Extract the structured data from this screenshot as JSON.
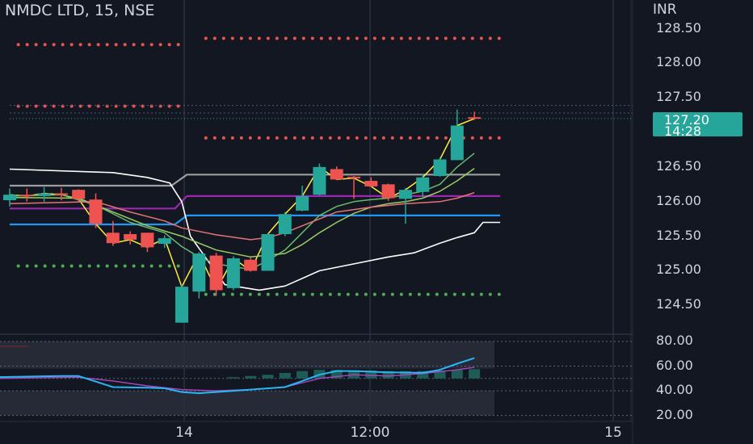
{
  "header": {
    "symbol": "NMDC LTD",
    "interval": "15",
    "exchange": "NSE"
  },
  "price_axis": {
    "currency": "INR",
    "ticks": [
      "128.50",
      "128.00",
      "127.50",
      "126.50",
      "126.00",
      "125.50",
      "125.00",
      "124.50"
    ]
  },
  "oscillator_axis": {
    "ticks": [
      "80.00",
      "60.00",
      "40.00",
      "20.00"
    ]
  },
  "last_price": {
    "price": "127.20",
    "countdown": "14:28"
  },
  "time_axis": {
    "labels": [
      "14",
      "12:00",
      "15"
    ]
  },
  "colors": {
    "background": "#131722",
    "up": "#26a69a",
    "down": "#ef5350",
    "resistance": "#ef5350",
    "support": "#4caf50",
    "magenta_line": "#9c27b0",
    "blue_line": "#2196f3",
    "white_line": "#ffffff",
    "gray_line": "#9e9e9e",
    "rsi_line": "#29b6f6",
    "rsi_signal": "#ab47bc"
  },
  "chart_data": [
    {
      "type": "candlestick",
      "title": "NMDC LTD, 15, NSE",
      "ylabel": "INR",
      "ylim": [
        124.1,
        128.85
      ],
      "last_price": 127.2,
      "candles": [
        {
          "t": "c1",
          "o": 126.02,
          "h": 126.19,
          "l": 125.93,
          "c": 126.1
        },
        {
          "t": "c2",
          "o": 126.1,
          "h": 126.19,
          "l": 126.0,
          "c": 126.08
        },
        {
          "t": "c3",
          "o": 126.08,
          "h": 126.21,
          "l": 126.0,
          "c": 126.12
        },
        {
          "t": "c4",
          "o": 126.12,
          "h": 126.2,
          "l": 126.02,
          "c": 126.1
        },
        {
          "t": "c5",
          "o": 126.17,
          "h": 126.18,
          "l": 126.0,
          "c": 126.04
        },
        {
          "t": "c6",
          "o": 126.03,
          "h": 126.12,
          "l": 125.62,
          "c": 125.68
        },
        {
          "t": "c7",
          "o": 125.55,
          "h": 125.72,
          "l": 125.36,
          "c": 125.4
        },
        {
          "t": "c8",
          "o": 125.53,
          "h": 125.57,
          "l": 125.38,
          "c": 125.45
        },
        {
          "t": "c9",
          "o": 125.55,
          "h": 125.55,
          "l": 125.27,
          "c": 125.34
        },
        {
          "t": "c10",
          "o": 125.39,
          "h": 125.51,
          "l": 125.33,
          "c": 125.47
        },
        {
          "t": "c11",
          "o": 124.25,
          "h": 124.8,
          "l": 124.25,
          "c": 124.77
        },
        {
          "t": "c12",
          "o": 124.7,
          "h": 125.27,
          "l": 124.6,
          "c": 125.25
        },
        {
          "t": "c13",
          "o": 125.22,
          "h": 125.26,
          "l": 124.64,
          "c": 124.72
        },
        {
          "t": "c14",
          "o": 124.75,
          "h": 125.21,
          "l": 124.72,
          "c": 125.18
        },
        {
          "t": "c15",
          "o": 125.16,
          "h": 125.19,
          "l": 124.99,
          "c": 125.0
        },
        {
          "t": "c16",
          "o": 125.0,
          "h": 125.54,
          "l": 125.0,
          "c": 125.53
        },
        {
          "t": "c17",
          "o": 125.53,
          "h": 125.85,
          "l": 125.5,
          "c": 125.82
        },
        {
          "t": "c18",
          "o": 125.87,
          "h": 126.23,
          "l": 125.86,
          "c": 126.08
        },
        {
          "t": "c19",
          "o": 126.1,
          "h": 126.55,
          "l": 126.09,
          "c": 126.5
        },
        {
          "t": "c20",
          "o": 126.47,
          "h": 126.51,
          "l": 126.31,
          "c": 126.32
        },
        {
          "t": "c21",
          "o": 126.36,
          "h": 126.37,
          "l": 126.04,
          "c": 126.34
        },
        {
          "t": "c22",
          "o": 126.3,
          "h": 126.35,
          "l": 126.21,
          "c": 126.22
        },
        {
          "t": "c23",
          "o": 126.25,
          "h": 126.26,
          "l": 126.01,
          "c": 126.05
        },
        {
          "t": "c24",
          "o": 126.04,
          "h": 126.2,
          "l": 125.68,
          "c": 126.17
        },
        {
          "t": "c25",
          "o": 126.14,
          "h": 126.4,
          "l": 126.07,
          "c": 126.35
        },
        {
          "t": "c26",
          "o": 126.37,
          "h": 126.64,
          "l": 126.36,
          "c": 126.61
        },
        {
          "t": "c27",
          "o": 126.6,
          "h": 127.33,
          "l": 126.6,
          "c": 127.1
        },
        {
          "t": "c28",
          "o": 127.22,
          "h": 127.3,
          "l": 127.18,
          "c": 127.2
        }
      ],
      "levels": [
        {
          "price": 128.36,
          "color": "#ef5350",
          "style": "dotted",
          "from": 11.4,
          "to": 28.5
        },
        {
          "price": 128.27,
          "color": "#ef5350",
          "style": "dotted",
          "from": 0.5,
          "to": 10.0
        },
        {
          "price": 127.38,
          "color": "#ef5350",
          "style": "dotted",
          "from": 0.5,
          "to": 10.0
        },
        {
          "price": 126.92,
          "color": "#ef5350",
          "style": "dotted",
          "from": 11.4,
          "to": 28.5
        },
        {
          "price": 125.07,
          "color": "#4caf50",
          "style": "dotted",
          "from": 0.5,
          "to": 10.0
        },
        {
          "price": 124.66,
          "color": "#4caf50",
          "style": "dotted",
          "from": 11.4,
          "to": 28.5
        },
        {
          "price": 127.39,
          "color": "#4a5a78",
          "style": "dashed",
          "from": 0,
          "to": 36.5
        },
        {
          "price": 127.28,
          "color": "#4a5a78",
          "style": "dashed",
          "from": 0,
          "to": 36.5
        },
        {
          "price": 127.2,
          "color": "#26a69a",
          "style": "dotted",
          "from": 0,
          "to": 36.5
        }
      ],
      "lines": [
        {
          "name": "gray_step",
          "color": "#9e9e9e",
          "points": [
            [
              0,
              126.23
            ],
            [
              9.4,
              126.23
            ],
            [
              10.3,
              126.39
            ],
            [
              28.5,
              126.39
            ]
          ]
        },
        {
          "name": "magenta_step",
          "color": "#9c27b0",
          "points": [
            [
              0,
              125.9
            ],
            [
              9.6,
              125.9
            ],
            [
              10.3,
              126.08
            ],
            [
              28.5,
              126.08
            ]
          ]
        },
        {
          "name": "blue_step",
          "color": "#2196f3",
          "points": [
            [
              0,
              125.67
            ],
            [
              9.6,
              125.67
            ],
            [
              10.3,
              125.8
            ],
            [
              28.5,
              125.8
            ]
          ]
        },
        {
          "name": "white_upper",
          "color": "#ffffff",
          "points": [
            [
              0,
              126.47
            ],
            [
              6,
              126.42
            ],
            [
              8,
              126.35
            ],
            [
              9.3,
              126.27
            ],
            [
              10,
              126.0
            ],
            [
              10.5,
              125.5
            ],
            [
              11.5,
              125.15
            ],
            [
              12.5,
              124.8
            ],
            [
              14.5,
              124.72
            ],
            [
              16,
              124.78
            ],
            [
              18,
              125.0
            ],
            [
              20,
              125.1
            ],
            [
              22,
              125.2
            ],
            [
              23.5,
              125.26
            ],
            [
              25,
              125.4
            ],
            [
              26,
              125.48
            ],
            [
              27,
              125.55
            ],
            [
              27.5,
              125.7
            ],
            [
              28.5,
              125.7
            ]
          ]
        },
        {
          "name": "yellow_close",
          "color": "#ffeb3b",
          "points": [
            [
              0,
              126.1
            ],
            [
              1,
              126.08
            ],
            [
              2,
              126.12
            ],
            [
              3,
              126.1
            ],
            [
              4,
              126.04
            ],
            [
              5,
              125.68
            ],
            [
              6,
              125.4
            ],
            [
              7,
              125.45
            ],
            [
              8,
              125.34
            ],
            [
              9,
              125.47
            ],
            [
              10,
              124.77
            ],
            [
              11,
              125.25
            ],
            [
              12,
              124.72
            ],
            [
              13,
              125.18
            ],
            [
              14,
              125.0
            ],
            [
              15,
              125.53
            ],
            [
              16,
              125.82
            ],
            [
              17,
              126.08
            ],
            [
              18,
              126.5
            ],
            [
              19,
              126.32
            ],
            [
              20,
              126.34
            ],
            [
              21,
              126.22
            ],
            [
              22,
              126.05
            ],
            [
              23,
              126.17
            ],
            [
              24,
              126.35
            ],
            [
              25,
              126.61
            ],
            [
              26,
              127.1
            ],
            [
              27,
              127.2
            ]
          ]
        },
        {
          "name": "green_ma",
          "color": "#66bb6a",
          "points": [
            [
              0,
              126.08
            ],
            [
              3,
              126.1
            ],
            [
              5,
              125.95
            ],
            [
              7,
              125.7
            ],
            [
              9,
              125.55
            ],
            [
              10,
              125.35
            ],
            [
              11,
              125.2
            ],
            [
              12,
              125.1
            ],
            [
              14,
              125.02
            ],
            [
              15,
              125.15
            ],
            [
              16,
              125.3
            ],
            [
              17,
              125.55
            ],
            [
              18,
              125.8
            ],
            [
              19,
              125.93
            ],
            [
              20,
              126.0
            ],
            [
              21,
              126.03
            ],
            [
              22,
              126.05
            ],
            [
              23,
              126.1
            ],
            [
              24,
              126.15
            ],
            [
              25,
              126.25
            ],
            [
              26,
              126.5
            ],
            [
              27,
              126.7
            ]
          ]
        },
        {
          "name": "lightgreen_ma",
          "color": "#9ccc65",
          "points": [
            [
              0,
              126.06
            ],
            [
              4,
              126.05
            ],
            [
              6,
              125.85
            ],
            [
              8,
              125.65
            ],
            [
              10,
              125.5
            ],
            [
              12,
              125.3
            ],
            [
              14,
              125.2
            ],
            [
              16,
              125.25
            ],
            [
              17,
              125.38
            ],
            [
              18,
              125.55
            ],
            [
              19,
              125.7
            ],
            [
              20,
              125.83
            ],
            [
              21,
              125.92
            ],
            [
              22,
              125.97
            ],
            [
              23,
              126.0
            ],
            [
              24,
              126.05
            ],
            [
              25,
              126.15
            ],
            [
              26,
              126.3
            ],
            [
              27,
              126.48
            ]
          ]
        },
        {
          "name": "red_ma",
          "color": "#e57373",
          "points": [
            [
              0,
              125.97
            ],
            [
              5,
              126.0
            ],
            [
              7,
              125.85
            ],
            [
              9,
              125.72
            ],
            [
              10,
              125.62
            ],
            [
              12,
              125.52
            ],
            [
              14,
              125.45
            ],
            [
              15,
              125.48
            ],
            [
              16,
              125.55
            ],
            [
              17,
              125.65
            ],
            [
              18,
              125.75
            ],
            [
              19,
              125.85
            ],
            [
              21,
              125.92
            ],
            [
              23,
              125.97
            ],
            [
              25,
              126.0
            ],
            [
              26,
              126.05
            ],
            [
              27,
              126.13
            ]
          ]
        }
      ]
    },
    {
      "type": "oscillator",
      "ylim": [
        15,
        82
      ],
      "ticks": [
        80,
        60,
        40,
        20
      ],
      "bands": [
        [
          58,
          80
        ],
        [
          20,
          40
        ]
      ],
      "dashed_levels": [
        80,
        60,
        50,
        40,
        20
      ],
      "rsi": [
        [
          -1,
          51
        ],
        [
          3,
          52
        ],
        [
          4,
          52
        ],
        [
          6,
          43
        ],
        [
          8,
          42.5
        ],
        [
          9,
          42
        ],
        [
          10,
          39
        ],
        [
          11,
          38
        ],
        [
          12,
          39
        ],
        [
          13,
          40
        ],
        [
          14,
          41
        ],
        [
          16,
          43
        ],
        [
          17,
          48
        ],
        [
          18,
          53
        ],
        [
          19,
          56
        ],
        [
          20,
          56
        ],
        [
          22,
          55
        ],
        [
          24,
          54.5
        ],
        [
          25,
          57
        ],
        [
          26,
          62
        ],
        [
          27,
          66.5
        ]
      ],
      "signal": [
        [
          -1,
          50
        ],
        [
          4,
          51
        ],
        [
          6,
          48
        ],
        [
          8,
          44
        ],
        [
          10,
          41
        ],
        [
          12,
          40
        ],
        [
          14,
          41
        ],
        [
          16,
          43
        ],
        [
          18,
          50
        ],
        [
          20,
          53
        ],
        [
          22,
          52
        ],
        [
          24,
          54
        ],
        [
          26,
          57
        ],
        [
          27,
          59
        ]
      ],
      "hist": [
        0,
        0,
        0,
        0,
        0,
        0,
        0,
        0,
        0,
        0,
        0,
        0,
        0,
        1,
        2,
        3,
        4.5,
        6,
        7,
        7,
        6.5,
        6.5,
        6,
        6,
        6,
        6.5,
        7,
        7.5
      ]
    }
  ]
}
